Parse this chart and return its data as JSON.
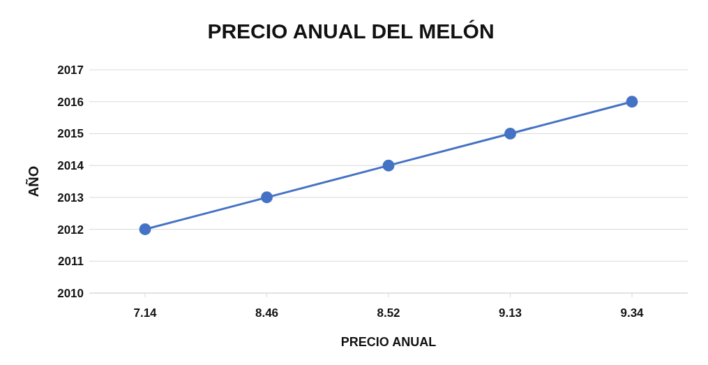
{
  "chart_data": {
    "type": "line",
    "title": "PRECIO ANUAL DEL MELÓN",
    "xlabel": "PRECIO ANUAL",
    "ylabel": "AÑO",
    "categories": [
      "7.14",
      "8.46",
      "8.52",
      "9.13",
      "9.34"
    ],
    "series": [
      {
        "color": "#4472c4",
        "values": [
          2012,
          2013,
          2014,
          2015,
          2016
        ]
      }
    ],
    "ylim": [
      2010,
      2017
    ],
    "yticks": [
      2010,
      2011,
      2012,
      2013,
      2014,
      2015,
      2016,
      2017
    ],
    "grid": "y",
    "marker": "circle",
    "line_style": "solid"
  }
}
